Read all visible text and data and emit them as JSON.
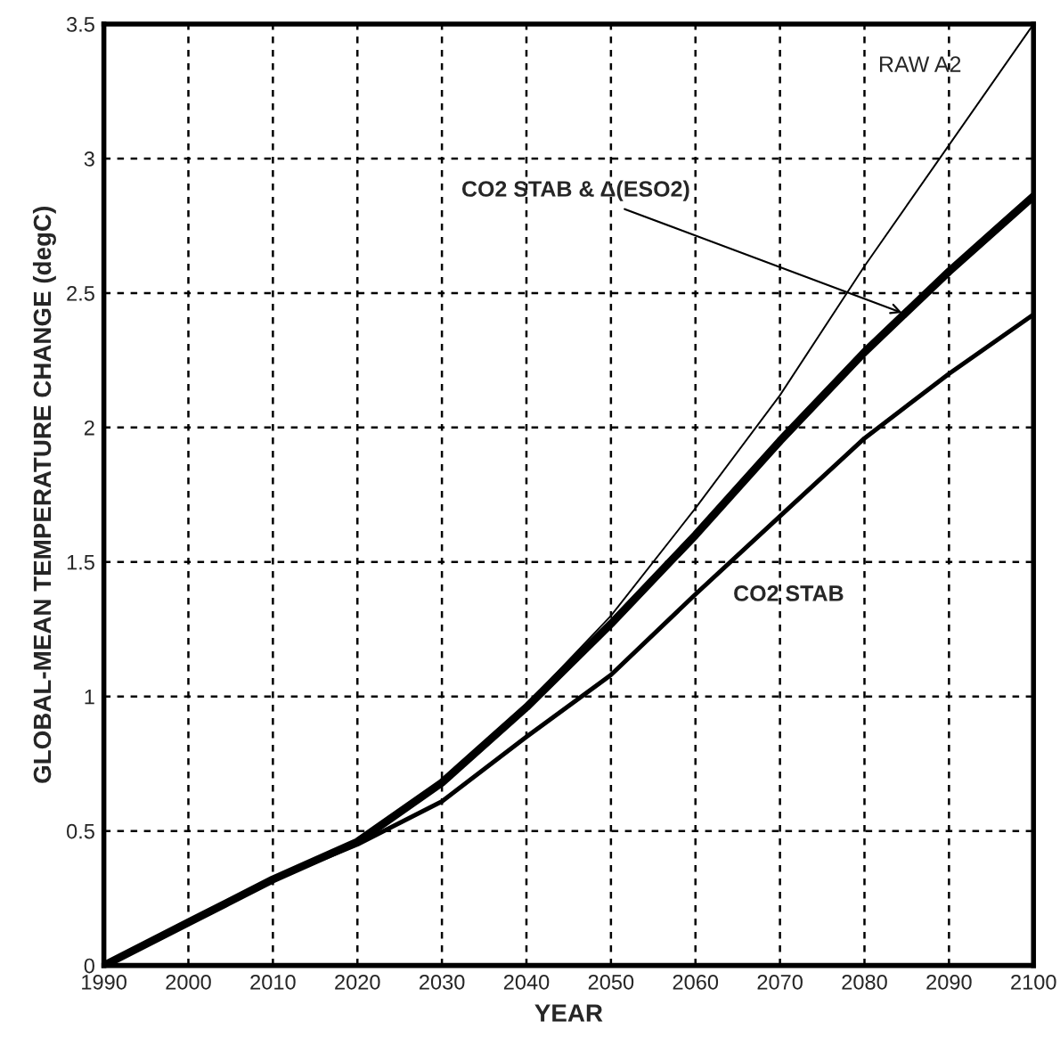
{
  "chart_data": {
    "type": "line",
    "xlabel": "YEAR",
    "ylabel": "GLOBAL-MEAN TEMPERATURE CHANGE (degC)",
    "x": [
      1990,
      2000,
      2010,
      2020,
      2030,
      2040,
      2050,
      2060,
      2070,
      2080,
      2090,
      2100
    ],
    "series": [
      {
        "color": "#000000",
        "values": [
          0,
          0.16,
          0.32,
          0.46,
          0.68,
          0.97,
          1.3,
          1.7,
          2.12,
          2.6,
          3.05,
          3.5
        ]
      },
      {
        "color": "#000000",
        "values": [
          0,
          0.16,
          0.32,
          0.46,
          0.68,
          0.96,
          1.27,
          1.6,
          1.95,
          2.28,
          2.58,
          2.86
        ]
      },
      {
        "color": "#000000",
        "values": [
          0,
          0.16,
          0.32,
          0.45,
          0.61,
          0.85,
          1.08,
          1.38,
          1.67,
          1.96,
          2.2,
          2.42
        ]
      }
    ],
    "annotations": [
      {
        "text": "RAW A2",
        "x": 2095,
        "y": 3.27
      },
      {
        "text": "CO2 STAB & Δ(ESO2)",
        "x": 2085,
        "y": 2.42
      },
      {
        "text": "CO2 STAB",
        "x": 2063,
        "y": 1.45
      }
    ],
    "xlim": [
      1990,
      2100
    ],
    "xticks": [
      1990,
      2000,
      2010,
      2020,
      2030,
      2040,
      2050,
      2060,
      2070,
      2080,
      2090,
      2100
    ],
    "ylim": [
      0,
      3.5
    ],
    "yticks": [
      0,
      0.5,
      1,
      1.5,
      2,
      2.5,
      3,
      3.5
    ],
    "grid": true,
    "legend": false,
    "marker": "none",
    "line_style": "solid"
  }
}
